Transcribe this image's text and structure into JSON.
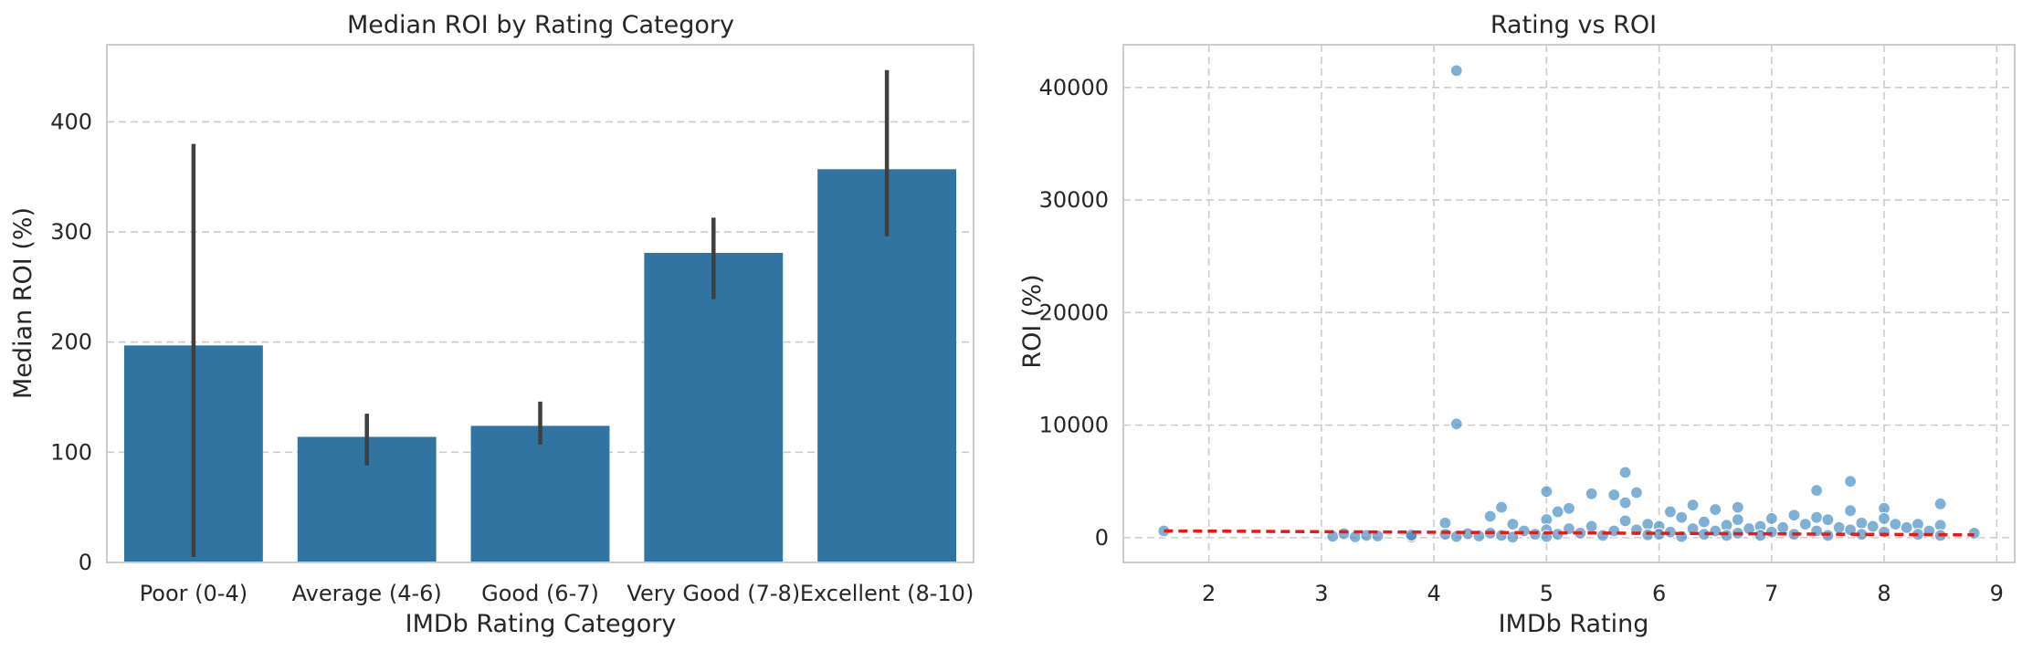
{
  "chart_data": [
    {
      "type": "bar",
      "title": "Median ROI by Rating Category",
      "xlabel": "IMDb Rating Category",
      "ylabel": "Median ROI (%)",
      "ylim": [
        0,
        470
      ],
      "yticks": [
        0,
        100,
        200,
        300,
        400
      ],
      "grid": true,
      "color": "#3274a1",
      "categories": [
        "Poor (0-4)",
        "Average (4-6)",
        "Good (6-7)",
        "Very Good (7-8)",
        "Excellent (8-10)"
      ],
      "values": [
        197,
        114,
        124,
        281,
        357
      ],
      "error_low": [
        5,
        88,
        107,
        239,
        296
      ],
      "error_high": [
        380,
        135,
        146,
        313,
        447
      ]
    },
    {
      "type": "scatter",
      "title": "Rating vs ROI",
      "xlabel": "IMDb Rating",
      "ylabel": "ROI (%)",
      "xlim": [
        1.24,
        9.16
      ],
      "ylim": [
        -2200,
        43800
      ],
      "xticks": [
        2,
        3,
        4,
        5,
        6,
        7,
        8,
        9
      ],
      "yticks": [
        0,
        10000,
        20000,
        30000,
        40000
      ],
      "grid": true,
      "point_color": "#3a86c0",
      "trend_color": "#e8191b",
      "trendline": {
        "x": [
          1.6,
          8.8
        ],
        "y": [
          600,
          250
        ]
      },
      "points": [
        [
          1.6,
          600
        ],
        [
          3.1,
          120
        ],
        [
          3.2,
          350
        ],
        [
          3.3,
          80
        ],
        [
          3.4,
          200
        ],
        [
          3.5,
          150
        ],
        [
          3.8,
          60
        ],
        [
          3.8,
          230
        ],
        [
          4.1,
          1300
        ],
        [
          4.1,
          300
        ],
        [
          4.2,
          41500
        ],
        [
          4.2,
          10100
        ],
        [
          4.2,
          100
        ],
        [
          4.3,
          350
        ],
        [
          4.4,
          150
        ],
        [
          4.5,
          1900
        ],
        [
          4.5,
          400
        ],
        [
          4.6,
          2700
        ],
        [
          4.6,
          200
        ],
        [
          4.7,
          1200
        ],
        [
          4.7,
          50
        ],
        [
          4.8,
          600
        ],
        [
          4.9,
          300
        ],
        [
          5.0,
          4100
        ],
        [
          5.0,
          1600
        ],
        [
          5.0,
          700
        ],
        [
          5.0,
          100
        ],
        [
          5.1,
          2300
        ],
        [
          5.1,
          300
        ],
        [
          5.2,
          2600
        ],
        [
          5.2,
          800
        ],
        [
          5.3,
          400
        ],
        [
          5.4,
          3900
        ],
        [
          5.4,
          1000
        ],
        [
          5.5,
          200
        ],
        [
          5.6,
          3800
        ],
        [
          5.6,
          600
        ],
        [
          5.7,
          5800
        ],
        [
          5.7,
          3100
        ],
        [
          5.7,
          1500
        ],
        [
          5.8,
          4000
        ],
        [
          5.8,
          700
        ],
        [
          5.9,
          1200
        ],
        [
          5.9,
          250
        ],
        [
          6.0,
          1000
        ],
        [
          6.0,
          300
        ],
        [
          6.1,
          2300
        ],
        [
          6.1,
          500
        ],
        [
          6.2,
          1800
        ],
        [
          6.2,
          100
        ],
        [
          6.3,
          2900
        ],
        [
          6.3,
          800
        ],
        [
          6.4,
          1400
        ],
        [
          6.4,
          300
        ],
        [
          6.5,
          2500
        ],
        [
          6.5,
          600
        ],
        [
          6.6,
          1100
        ],
        [
          6.6,
          200
        ],
        [
          6.7,
          2700
        ],
        [
          6.7,
          1600
        ],
        [
          6.7,
          400
        ],
        [
          6.8,
          800
        ],
        [
          6.9,
          1000
        ],
        [
          6.9,
          200
        ],
        [
          7.0,
          1700
        ],
        [
          7.0,
          500
        ],
        [
          7.1,
          900
        ],
        [
          7.2,
          2000
        ],
        [
          7.2,
          300
        ],
        [
          7.3,
          1200
        ],
        [
          7.4,
          4200
        ],
        [
          7.4,
          1800
        ],
        [
          7.4,
          600
        ],
        [
          7.5,
          1600
        ],
        [
          7.5,
          200
        ],
        [
          7.6,
          900
        ],
        [
          7.7,
          5000
        ],
        [
          7.7,
          2400
        ],
        [
          7.7,
          700
        ],
        [
          7.8,
          1300
        ],
        [
          7.8,
          300
        ],
        [
          7.9,
          1000
        ],
        [
          8.0,
          2600
        ],
        [
          8.0,
          1700
        ],
        [
          8.0,
          500
        ],
        [
          8.1,
          1200
        ],
        [
          8.2,
          900
        ],
        [
          8.3,
          1200
        ],
        [
          8.3,
          300
        ],
        [
          8.4,
          600
        ],
        [
          8.5,
          3000
        ],
        [
          8.5,
          1100
        ],
        [
          8.5,
          200
        ],
        [
          8.8,
          400
        ]
      ]
    }
  ]
}
